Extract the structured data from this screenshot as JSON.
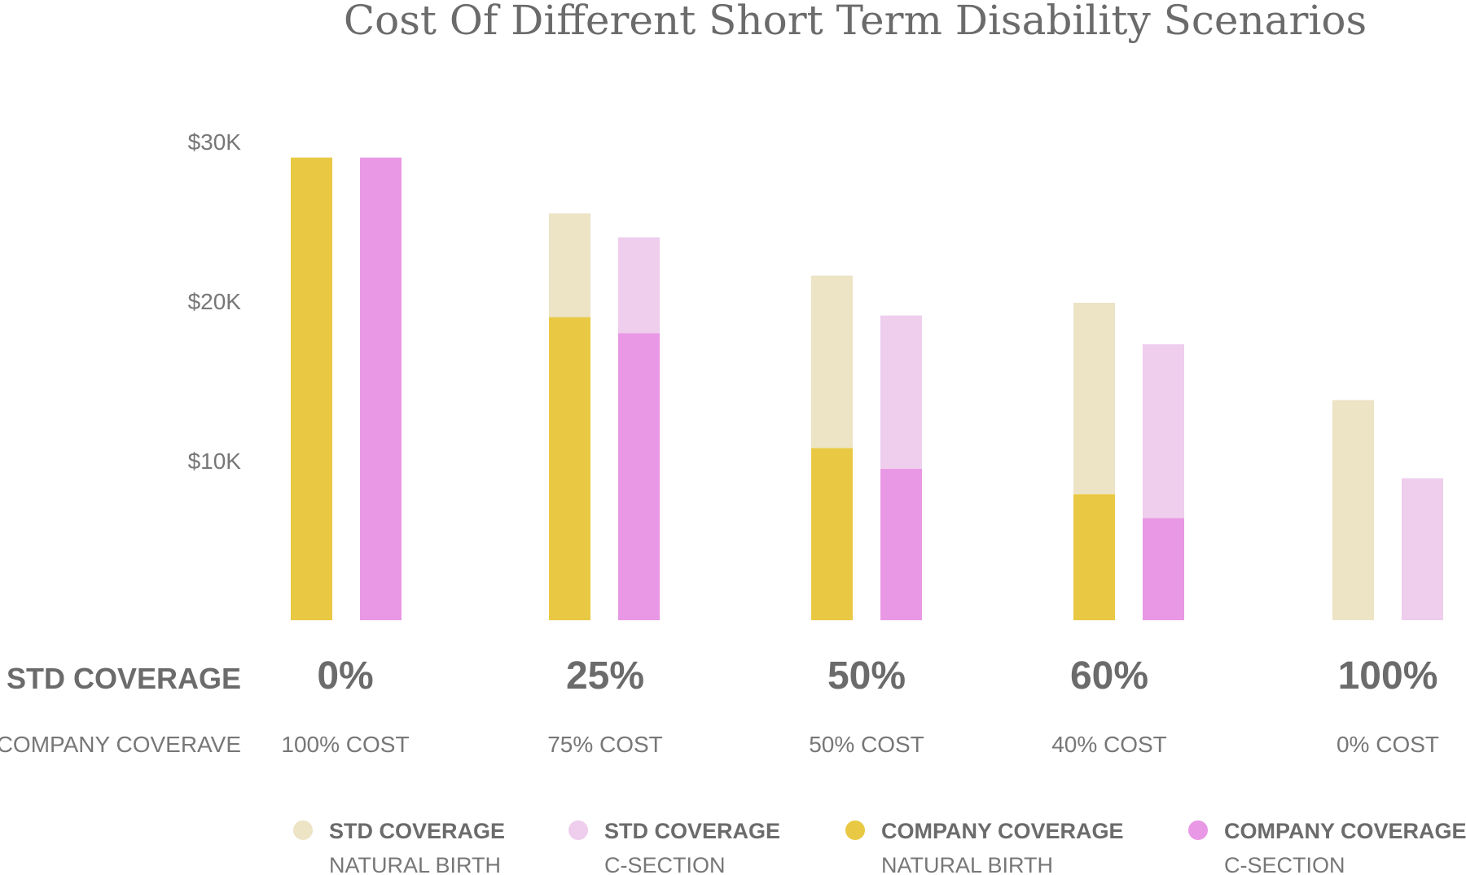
{
  "chart_data": {
    "type": "bar",
    "title": "Cost Of Different Short Term Disability Scenarios",
    "y_tick_labels": [
      "$10K",
      "$20K",
      "$30K"
    ],
    "y_ticks": [
      10000,
      20000,
      30000
    ],
    "ylim": [
      0,
      30000
    ],
    "grid": false,
    "legend_position": "bottom",
    "row_labels": {
      "std_coverage": "STD COVERAGE",
      "company_coverage": "COMPANY COVERAVE"
    },
    "categories": [
      "0%",
      "25%",
      "50%",
      "60%",
      "100%"
    ],
    "company_cost_labels": [
      "100% COST",
      "75% COST",
      "50% COST",
      "40% COST",
      "0% COST"
    ],
    "groups": [
      {
        "scenario": "NATURAL BIRTH",
        "std_coverage": [
          0,
          6500,
          10800,
          12000,
          13800
        ],
        "company_coverage": [
          29000,
          19000,
          10800,
          7900,
          0
        ]
      },
      {
        "scenario": "C-SECTION",
        "std_coverage": [
          0,
          6000,
          9600,
          10900,
          8900
        ],
        "company_coverage": [
          29000,
          18000,
          9500,
          6400,
          0
        ]
      }
    ],
    "legend": [
      {
        "title": "STD COVERAGE",
        "subtitle": "NATURAL BIRTH",
        "color": "#ede3c5"
      },
      {
        "title": "STD COVERAGE",
        "subtitle": "C-SECTION",
        "color": "#eecded"
      },
      {
        "title": "COMPANY COVERAGE",
        "subtitle": "NATURAL BIRTH",
        "color": "#e9c943"
      },
      {
        "title": "COMPANY COVERAGE",
        "subtitle": "C-SECTION",
        "color": "#e998e5"
      }
    ],
    "colors": {
      "std_natural": "#ede3c5",
      "std_csection": "#eecded",
      "company_natural": "#e9c943",
      "company_csection": "#e998e5"
    }
  }
}
